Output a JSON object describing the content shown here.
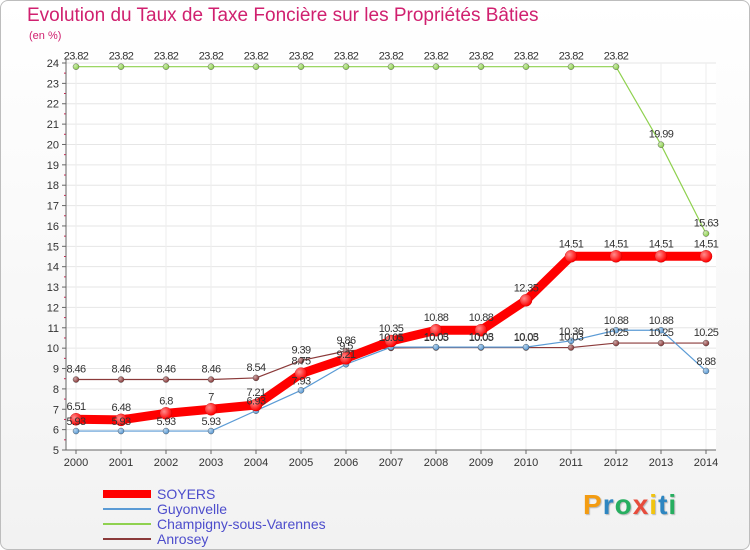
{
  "chart_data": {
    "type": "line",
    "title": "Evolution du Taux de Taxe Foncière sur les Propriétés Bâties",
    "ylabel": "(en %)",
    "xlabel": "",
    "ylim": [
      5,
      24
    ],
    "yticks": [
      "5",
      "6",
      "7",
      "8",
      "9",
      "10",
      "11",
      "12",
      "13",
      "14",
      "15",
      "16",
      "17",
      "18",
      "19",
      "20",
      "21",
      "22",
      "23",
      "24"
    ],
    "categories": [
      "2000",
      "2001",
      "2002",
      "2003",
      "2004",
      "2005",
      "2006",
      "2007",
      "2008",
      "2009",
      "2010",
      "2011",
      "2012",
      "2013",
      "2014"
    ],
    "series": [
      {
        "name": "SOYERS",
        "color": "#ff0000",
        "values": [
          6.51,
          6.48,
          6.8,
          7,
          7.21,
          8.75,
          9.5,
          10.35,
          10.88,
          10.88,
          12.35,
          14.51,
          14.51,
          14.51,
          14.51
        ],
        "labels": [
          "6.51",
          "6.48",
          "6.8",
          "7",
          "7.21",
          "8.75",
          "9.5",
          "10.35",
          "10.88",
          "10.88",
          "12.35",
          "14.51",
          "14.51",
          "14.51",
          "14.51"
        ]
      },
      {
        "name": "Guyonvelle",
        "color": "#5b9bd5",
        "values": [
          5.93,
          5.93,
          5.93,
          5.93,
          6.93,
          7.93,
          9.21,
          10.05,
          10.05,
          10.05,
          10.05,
          10.36,
          10.88,
          10.88,
          8.88
        ],
        "labels": [
          "5.93",
          "5.93",
          "5.93",
          "5.93",
          "6.93",
          "7.93",
          "9.21",
          "10.05",
          "10.05",
          "10.05",
          "10.05",
          "10.36",
          "10.88",
          "10.88",
          "8.88"
        ]
      },
      {
        "name": "Champigny-sous-Varennes",
        "color": "#8fd14f",
        "values": [
          23.82,
          23.82,
          23.82,
          23.82,
          23.82,
          23.82,
          23.82,
          23.82,
          23.82,
          23.82,
          23.82,
          23.82,
          23.82,
          19.99,
          15.63
        ],
        "labels": [
          "23.82",
          "23.82",
          "23.82",
          "23.82",
          "23.82",
          "23.82",
          "23.82",
          "23.82",
          "23.82",
          "23.82",
          "23.82",
          "23.82",
          "23.82",
          "19.99",
          "15.63"
        ]
      },
      {
        "name": "Anrosey",
        "color": "#8b3a3a",
        "values": [
          8.46,
          8.46,
          8.46,
          8.46,
          8.54,
          9.39,
          9.86,
          10.01,
          10.03,
          10.03,
          10.03,
          10.03,
          10.25,
          10.25,
          10.25
        ],
        "labels": [
          "8.46",
          "8.46",
          "8.46",
          "8.46",
          "8.54",
          "9.39",
          "9.86",
          "10.01",
          "10.03",
          "10.03",
          "10.03",
          "10.03",
          "10.25",
          "10.25",
          "10.25"
        ]
      }
    ]
  },
  "branding": {
    "logo_letters": [
      "P",
      "r",
      "o",
      "x",
      "i",
      "t",
      "i"
    ],
    "logo_colors": [
      "#f39c12",
      "#2e86c1",
      "#27ae60",
      "#e74c3c",
      "#f1c40f",
      "#2e86c1",
      "#27ae60"
    ]
  }
}
